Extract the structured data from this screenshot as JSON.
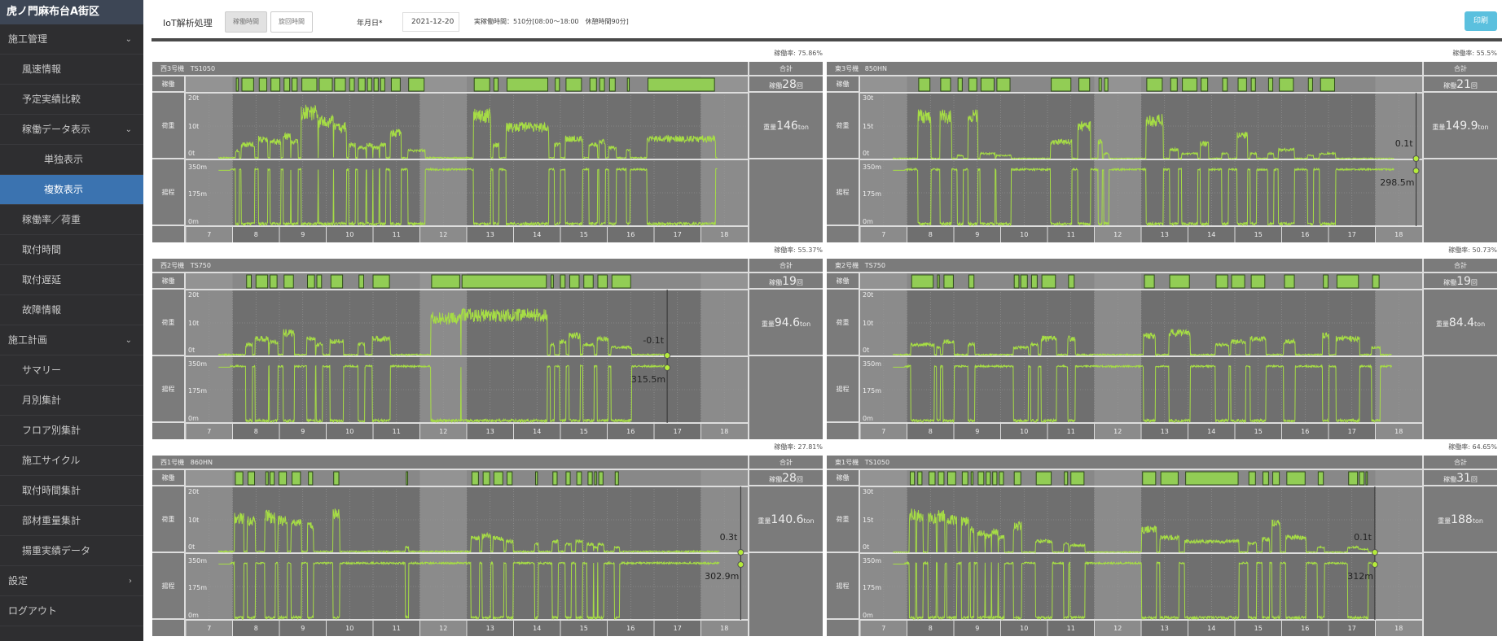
{
  "sidebar": {
    "title": "虎ノ門麻布台A街区",
    "items": [
      {
        "label": "施工管理",
        "level": 1,
        "chev": "⌄"
      },
      {
        "label": "風速情報",
        "level": 2
      },
      {
        "label": "予定実績比較",
        "level": 2
      },
      {
        "label": "稼働データ表示",
        "level": 2,
        "chev": "⌄"
      },
      {
        "label": "単独表示",
        "level": 3
      },
      {
        "label": "複数表示",
        "level": 3,
        "active": true
      },
      {
        "label": "稼働率／荷重",
        "level": 2
      },
      {
        "label": "取付時間",
        "level": 2
      },
      {
        "label": "取付遅延",
        "level": 2
      },
      {
        "label": "故障情報",
        "level": 2
      },
      {
        "label": "施工計画",
        "level": 1,
        "chev": "⌄"
      },
      {
        "label": "サマリー",
        "level": 2
      },
      {
        "label": "月別集計",
        "level": 2
      },
      {
        "label": "フロア別集計",
        "level": 2
      },
      {
        "label": "施工サイクル",
        "level": 2
      },
      {
        "label": "取付時間集計",
        "level": 2
      },
      {
        "label": "部材重量集計",
        "level": 2
      },
      {
        "label": "揚重実績データ",
        "level": 2
      },
      {
        "label": "設定",
        "level": 1,
        "chev": "›"
      },
      {
        "label": "ログアウト",
        "level": 1
      }
    ]
  },
  "header": {
    "title": "IoT解析処理",
    "toggle": [
      "稼働時間",
      "旋回時間"
    ],
    "date_label": "年月日*",
    "date": "2021-12-20",
    "info": "実稼働時間：510分[08:00～18:00　休憩時間90分]",
    "print": "印刷"
  },
  "labels": {
    "op": "稼働",
    "load": "荷重",
    "height": "揚程",
    "sum": "合計",
    "count_prefix": "稼働",
    "count_unit": "回",
    "weight_prefix": "重量",
    "weight_unit": "ton"
  },
  "colors": {
    "bar": "#92cd55",
    "line": "#a6dd45",
    "bg": "#6f6f6f",
    "bg_light": "#8b8b8b"
  },
  "chart_data": [
    {
      "type": "timeline",
      "name": "西3号機",
      "model": "TS1050",
      "rate": "稼働率: 75.86%",
      "count": "28",
      "weight": "146",
      "load_max": 20,
      "load_ticks": [
        "20t",
        "10t",
        "0t"
      ],
      "height_ticks": [
        "350m",
        "175m",
        "0m"
      ],
      "x_ticks": [
        "7",
        "8",
        "9",
        "10",
        "11",
        "12",
        "13",
        "14",
        "15",
        "16",
        "17",
        "18"
      ],
      "ops": [
        [
          8.08,
          8.12,
          3
        ],
        [
          8.2,
          8.45,
          5
        ],
        [
          8.57,
          8.73,
          7
        ],
        [
          8.82,
          9.01,
          6
        ],
        [
          9.1,
          9.22,
          8
        ],
        [
          9.27,
          9.38,
          6
        ],
        [
          9.48,
          9.8,
          16
        ],
        [
          9.85,
          10.13,
          13
        ],
        [
          10.18,
          10.41,
          11
        ],
        [
          10.5,
          10.6,
          5
        ],
        [
          10.69,
          10.83,
          4
        ],
        [
          10.88,
          10.97,
          5
        ],
        [
          11.02,
          11.11,
          4
        ],
        [
          11.16,
          11.25,
          5
        ],
        [
          11.39,
          11.58,
          9
        ],
        [
          11.76,
          12.09,
          3
        ],
        [
          13.16,
          13.49,
          15
        ],
        [
          13.58,
          13.67,
          5
        ],
        [
          13.86,
          14.73,
          11
        ],
        [
          14.89,
          14.98,
          5
        ],
        [
          15.12,
          15.45,
          7
        ],
        [
          15.63,
          15.77,
          5
        ],
        [
          15.84,
          15.94,
          6
        ],
        [
          16.05,
          16.17,
          4
        ],
        [
          16.43,
          16.47,
          3
        ],
        [
          16.87,
          18.29,
          7
        ]
      ]
    },
    {
      "type": "timeline",
      "name": "東3号機",
      "model": "850HN",
      "rate": "稼働率: 55.5%",
      "count": "21",
      "weight": "149.9",
      "load_max": 30,
      "load_ticks": [
        "30t",
        "15t",
        "0t"
      ],
      "height_ticks": [
        "350m",
        "175m",
        "0m"
      ],
      "x_ticks": [
        "7",
        "8",
        "9",
        "10",
        "11",
        "12",
        "13",
        "14",
        "15",
        "16",
        "17",
        "18"
      ],
      "cursor": {
        "hour": 18.87,
        "load": "0.1t",
        "height": "298.5m"
      },
      "ops": [
        [
          8.25,
          8.49,
          22
        ],
        [
          8.72,
          8.93,
          22
        ],
        [
          9.09,
          9.18,
          2
        ],
        [
          9.32,
          9.49,
          22
        ],
        [
          9.58,
          9.86,
          3
        ],
        [
          9.92,
          10.2,
          2
        ],
        [
          11.08,
          11.5,
          9
        ],
        [
          11.67,
          11.9,
          17
        ],
        [
          12.1,
          12.15,
          9
        ],
        [
          12.22,
          12.29,
          3
        ],
        [
          13.12,
          13.45,
          20
        ],
        [
          13.63,
          13.77,
          5
        ],
        [
          13.88,
          14.19,
          3
        ],
        [
          14.28,
          14.42,
          8
        ],
        [
          14.74,
          14.84,
          3
        ],
        [
          15.07,
          15.25,
          12
        ],
        [
          15.35,
          15.44,
          3
        ],
        [
          15.72,
          15.81,
          3
        ],
        [
          15.95,
          16.25,
          5
        ],
        [
          16.57,
          16.66,
          2
        ],
        [
          16.83,
          17.13,
          3
        ]
      ]
    },
    {
      "type": "timeline",
      "name": "西2号機",
      "model": "TS750",
      "rate": "稼働率: 55.37%",
      "count": "19",
      "weight": "94.6",
      "load_max": 20,
      "load_ticks": [
        "20t",
        "10t",
        "0t"
      ],
      "height_ticks": [
        "350m",
        "175m",
        "0m"
      ],
      "x_ticks": [
        "7",
        "8",
        "9",
        "10",
        "11",
        "12",
        "13",
        "14",
        "15",
        "16",
        "17",
        "18"
      ],
      "cursor": {
        "hour": 17.28,
        "load": "-0.1t",
        "height": "315.5m"
      },
      "ops": [
        [
          8.3,
          8.4,
          4
        ],
        [
          8.5,
          8.75,
          6
        ],
        [
          8.8,
          8.95,
          5
        ],
        [
          9.1,
          9.3,
          8
        ],
        [
          9.6,
          9.75,
          6
        ],
        [
          9.8,
          9.9,
          4
        ],
        [
          10.1,
          10.35,
          5
        ],
        [
          10.7,
          10.8,
          4
        ],
        [
          11.0,
          11.35,
          6
        ],
        [
          12.25,
          12.85,
          13
        ],
        [
          12.9,
          14.7,
          14
        ],
        [
          14.8,
          14.85,
          4
        ],
        [
          15.0,
          15.1,
          5
        ],
        [
          15.2,
          15.4,
          7
        ],
        [
          15.5,
          15.7,
          4
        ],
        [
          15.8,
          16.0,
          6
        ],
        [
          16.1,
          16.5,
          3
        ]
      ]
    },
    {
      "type": "timeline",
      "name": "東2号機",
      "model": "TS750",
      "rate": "稼働率: 50.73%",
      "count": "19",
      "weight": "84.4",
      "load_max": 20,
      "load_ticks": [
        "20t",
        "10t",
        "0t"
      ],
      "height_ticks": [
        "350m",
        "175m",
        "0m"
      ],
      "x_ticks": [
        "7",
        "8",
        "9",
        "10",
        "11",
        "12",
        "13",
        "14",
        "15",
        "16",
        "17",
        "18"
      ],
      "ops": [
        [
          8.1,
          8.56,
          4
        ],
        [
          8.65,
          8.69,
          3
        ],
        [
          8.79,
          8.99,
          5
        ],
        [
          9.32,
          9.43,
          4
        ],
        [
          10.29,
          10.39,
          3
        ],
        [
          10.43,
          10.57,
          3
        ],
        [
          10.66,
          10.78,
          4
        ],
        [
          10.88,
          11.17,
          6
        ],
        [
          11.45,
          11.57,
          6
        ],
        [
          13.07,
          13.28,
          7
        ],
        [
          13.61,
          14.03,
          8
        ],
        [
          14.6,
          14.85,
          4
        ],
        [
          14.93,
          15.21,
          5
        ],
        [
          15.35,
          15.64,
          6
        ],
        [
          16.06,
          16.27,
          5
        ],
        [
          16.89,
          16.99,
          7
        ],
        [
          17.18,
          17.64,
          6
        ],
        [
          17.94,
          18.08,
          3
        ]
      ]
    },
    {
      "type": "timeline",
      "name": "西1号機",
      "model": "860HN",
      "rate": "稼働率: 27.81%",
      "count": "28",
      "weight": "140.6",
      "load_max": 20,
      "load_ticks": [
        "20t",
        "10t",
        "0t"
      ],
      "height_ticks": [
        "350m",
        "175m",
        "0m"
      ],
      "x_ticks": [
        "7",
        "8",
        "9",
        "10",
        "11",
        "12",
        "13",
        "14",
        "15",
        "16",
        "17",
        "18"
      ],
      "cursor": {
        "hour": 18.85,
        "load": "0.3t",
        "height": "302.9m"
      },
      "ops": [
        [
          8.06,
          8.22,
          12
        ],
        [
          8.33,
          8.47,
          11
        ],
        [
          8.71,
          8.76,
          13
        ],
        [
          8.8,
          8.89,
          12
        ],
        [
          8.99,
          9.15,
          11
        ],
        [
          9.27,
          9.45,
          10
        ],
        [
          9.62,
          9.71,
          9
        ],
        [
          10.16,
          10.27,
          13
        ],
        [
          11.71,
          11.74,
          2
        ],
        [
          13.11,
          13.25,
          5
        ],
        [
          13.35,
          13.49,
          6
        ],
        [
          13.58,
          13.77,
          5
        ],
        [
          13.86,
          13.97,
          4
        ],
        [
          14.47,
          14.51,
          3
        ],
        [
          14.84,
          14.93,
          4
        ],
        [
          15.12,
          15.21,
          3
        ],
        [
          15.35,
          15.45,
          4
        ],
        [
          15.59,
          15.68,
          3
        ],
        [
          15.73,
          15.77,
          2
        ],
        [
          15.82,
          15.91,
          3
        ],
        [
          16.17,
          16.24,
          2
        ]
      ]
    },
    {
      "type": "timeline",
      "name": "東1号機",
      "model": "TS1050",
      "rate": "稼働率: 64.65%",
      "count": "31",
      "weight": "188",
      "load_max": 30,
      "load_ticks": [
        "30t",
        "15t",
        "0t"
      ],
      "height_ticks": [
        "350m",
        "175m",
        "0m"
      ],
      "x_ticks": [
        "7",
        "8",
        "9",
        "10",
        "11",
        "12",
        "13",
        "14",
        "15",
        "16",
        "17",
        "18"
      ],
      "cursor": {
        "hour": 17.99,
        "load": "0.1t",
        "height": "312m"
      },
      "ops": [
        [
          8.07,
          8.16,
          20
        ],
        [
          8.23,
          8.32,
          19
        ],
        [
          8.47,
          8.6,
          18
        ],
        [
          8.67,
          8.79,
          19
        ],
        [
          8.87,
          9.04,
          17
        ],
        [
          9.18,
          9.3,
          16
        ],
        [
          9.37,
          9.41,
          12
        ],
        [
          9.52,
          9.64,
          10
        ],
        [
          9.69,
          9.78,
          9
        ],
        [
          9.83,
          9.92,
          11
        ],
        [
          9.97,
          10.06,
          8
        ],
        [
          10.29,
          10.43,
          14
        ],
        [
          10.76,
          11.08,
          6
        ],
        [
          11.36,
          11.43,
          5
        ],
        [
          11.5,
          11.78,
          4
        ],
        [
          13.03,
          13.31,
          12
        ],
        [
          13.42,
          13.79,
          8
        ],
        [
          13.95,
          15.07,
          6
        ],
        [
          15.3,
          15.44,
          5
        ],
        [
          15.6,
          15.72,
          7
        ],
        [
          15.81,
          15.95,
          15
        ],
        [
          16.11,
          16.5,
          8
        ],
        [
          16.78,
          16.89,
          3
        ],
        [
          17.43,
          17.62,
          3
        ],
        [
          17.66,
          17.76,
          2
        ],
        [
          17.8,
          17.83,
          2
        ]
      ]
    }
  ]
}
